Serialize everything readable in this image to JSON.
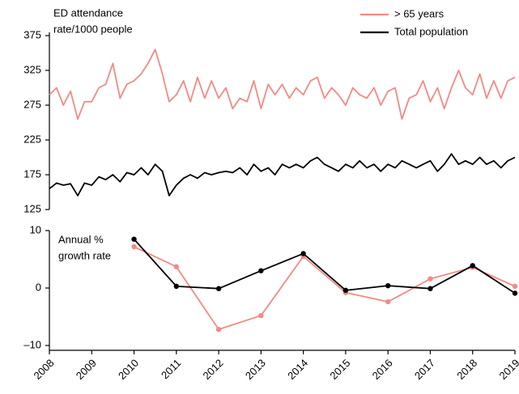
{
  "chart_data": [
    {
      "type": "line",
      "ylabel": [
        "ED attendance",
        "rate/1000 people"
      ],
      "xlim": [
        2008,
        2019
      ],
      "ylim": [
        125,
        375
      ],
      "yticks": [
        125,
        175,
        225,
        275,
        325,
        375
      ],
      "legend": "top-right",
      "x": [
        2008,
        2008.17,
        2008.33,
        2008.5,
        2008.67,
        2008.83,
        2009,
        2009.17,
        2009.33,
        2009.5,
        2009.67,
        2009.83,
        2010,
        2010.17,
        2010.33,
        2010.5,
        2010.67,
        2010.83,
        2011,
        2011.17,
        2011.33,
        2011.5,
        2011.67,
        2011.83,
        2012,
        2012.17,
        2012.33,
        2012.5,
        2012.67,
        2012.83,
        2013,
        2013.17,
        2013.33,
        2013.5,
        2013.67,
        2013.83,
        2014,
        2014.17,
        2014.33,
        2014.5,
        2014.67,
        2014.83,
        2015,
        2015.17,
        2015.33,
        2015.5,
        2015.67,
        2015.83,
        2016,
        2016.17,
        2016.33,
        2016.5,
        2016.67,
        2016.83,
        2017,
        2017.17,
        2017.33,
        2017.5,
        2017.67,
        2017.83,
        2018,
        2018.17,
        2018.33,
        2018.5,
        2018.67,
        2018.83,
        2019
      ],
      "series": [
        {
          "name": "> 65 years",
          "color": "#f28a84",
          "values": [
            290,
            300,
            275,
            295,
            255,
            280,
            280,
            300,
            305,
            335,
            285,
            305,
            310,
            320,
            335,
            355,
            320,
            280,
            290,
            310,
            280,
            315,
            285,
            310,
            285,
            300,
            270,
            285,
            280,
            310,
            270,
            305,
            290,
            305,
            285,
            300,
            290,
            310,
            315,
            285,
            300,
            290,
            275,
            300,
            290,
            285,
            300,
            275,
            295,
            300,
            255,
            285,
            290,
            310,
            280,
            300,
            270,
            300,
            325,
            300,
            290,
            320,
            285,
            310,
            285,
            310,
            315
          ]
        },
        {
          "name": "Total population",
          "color": "#000000",
          "values": [
            155,
            163,
            160,
            162,
            145,
            163,
            160,
            172,
            168,
            175,
            165,
            178,
            175,
            185,
            175,
            190,
            180,
            145,
            160,
            170,
            175,
            170,
            178,
            175,
            178,
            180,
            178,
            185,
            175,
            190,
            180,
            185,
            175,
            190,
            185,
            190,
            185,
            195,
            200,
            190,
            185,
            180,
            190,
            185,
            195,
            185,
            190,
            180,
            190,
            185,
            195,
            190,
            185,
            190,
            195,
            180,
            190,
            205,
            190,
            195,
            190,
            200,
            190,
            195,
            185,
            195,
            200
          ]
        }
      ]
    },
    {
      "type": "line",
      "ylabel": [
        "Annual %",
        "growth rate"
      ],
      "xlim": [
        2008,
        2019
      ],
      "xticks": [
        2008,
        2009,
        2010,
        2011,
        2012,
        2013,
        2014,
        2015,
        2016,
        2017,
        2018,
        2019
      ],
      "ylim": [
        -10,
        10
      ],
      "yticks": [
        {
          "value": -10,
          "label": "–10"
        },
        0,
        10
      ],
      "markers": true,
      "x": [
        2010,
        2011,
        2012,
        2013,
        2014,
        2015,
        2016,
        2017,
        2018,
        2019
      ],
      "series": [
        {
          "color": "#f28a84",
          "values": [
            7.2,
            3.7,
            -7.2,
            -4.8,
            5.5,
            -0.8,
            -2.4,
            1.6,
            3.6,
            0.3
          ]
        },
        {
          "color": "#000000",
          "values": [
            8.5,
            0.3,
            -0.1,
            3.0,
            6.0,
            -0.4,
            0.4,
            -0.1,
            3.9,
            -0.9
          ]
        }
      ]
    }
  ]
}
